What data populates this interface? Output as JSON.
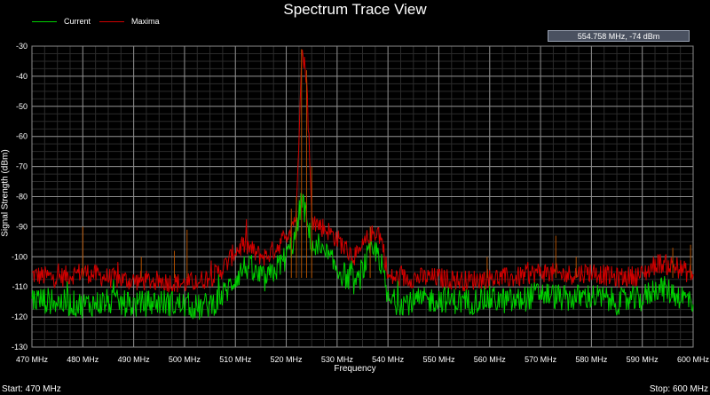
{
  "window": {
    "title": "Spectrum Trace View"
  },
  "legend": [
    {
      "label": "Current",
      "color": "#00d000"
    },
    {
      "label": "Maxima",
      "color": "#d00000"
    }
  ],
  "readout": "554.758 MHz,   -74 dBm",
  "footer": {
    "start": "Start: 470 MHz",
    "stop": "Stop: 600 MHz"
  },
  "chart_data": {
    "type": "line",
    "title": "Spectrum Trace View",
    "xlabel": "Frequency",
    "ylabel": "Signal Strength (dBm)",
    "x_unit": "MHz",
    "xlim": [
      470,
      600
    ],
    "ylim": [
      -130,
      -30
    ],
    "xticks": [
      "470 MHz",
      "480 MHz",
      "490 MHz",
      "500 MHz",
      "510 MHz",
      "520 MHz",
      "530 MHz",
      "540 MHz",
      "550 MHz",
      "560 MHz",
      "570 MHz",
      "580 MHz",
      "590 MHz",
      "600 MHz"
    ],
    "yticks": [
      "-30",
      "-40",
      "-50",
      "-60",
      "-70",
      "-80",
      "-90",
      "-100",
      "-110",
      "-120",
      "-130"
    ],
    "grid": true,
    "legend_position": "top-left",
    "series": [
      {
        "name": "Current",
        "color": "#00d000",
        "x": [
          470,
          475,
          480,
          485,
          490,
          495,
          500,
          503,
          506,
          508,
          510,
          512,
          514,
          516,
          518,
          520,
          522,
          523,
          524,
          525,
          526,
          528,
          530,
          532,
          534,
          536,
          538,
          539,
          540,
          545,
          550,
          555,
          560,
          565,
          570,
          575,
          580,
          585,
          590,
          593,
          596,
          600
        ],
        "y": [
          -114,
          -115,
          -116,
          -115,
          -116,
          -115,
          -116,
          -117,
          -115,
          -112,
          -107,
          -103,
          -106,
          -108,
          -104,
          -100,
          -93,
          -80,
          -88,
          -96,
          -98,
          -100,
          -104,
          -107,
          -109,
          -100,
          -98,
          -105,
          -115,
          -115,
          -114,
          -115,
          -114,
          -115,
          -112,
          -114,
          -113,
          -115,
          -114,
          -110,
          -112,
          -115
        ]
      },
      {
        "name": "Maxima",
        "color": "#d00000",
        "x": [
          470,
          475,
          480,
          485,
          490,
          495,
          500,
          503,
          506,
          508,
          510,
          512,
          514,
          516,
          518,
          520,
          522,
          523,
          524,
          525,
          526,
          528,
          530,
          532,
          534,
          536,
          538,
          539,
          540,
          545,
          550,
          555,
          560,
          565,
          570,
          575,
          580,
          585,
          590,
          593,
          596,
          600
        ],
        "y": [
          -106,
          -107,
          -105,
          -107,
          -108,
          -108,
          -109,
          -108,
          -106,
          -103,
          -98,
          -96,
          -99,
          -100,
          -97,
          -93,
          -86,
          -31,
          -40,
          -87,
          -89,
          -91,
          -94,
          -98,
          -100,
          -94,
          -91,
          -96,
          -107,
          -107,
          -107,
          -108,
          -107,
          -107,
          -105,
          -106,
          -105,
          -107,
          -106,
          -102,
          -103,
          -106
        ]
      }
    ]
  }
}
